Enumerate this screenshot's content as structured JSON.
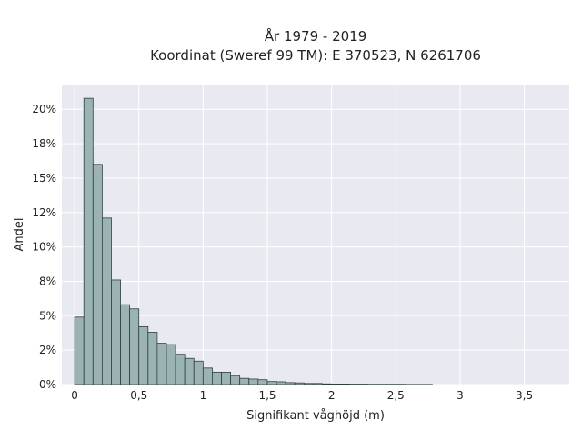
{
  "chart_data": {
    "type": "bar",
    "title_line1": "År 1979 - 2019",
    "title_line2": "Koordinat (Sweref 99 TM): E 370523, N 6261706",
    "xlabel": "Signifikant våghöjd (m)",
    "ylabel": "Andel",
    "xlim": [
      -0.1,
      3.85
    ],
    "ylim": [
      0,
      21.8
    ],
    "grid": true,
    "colors": {
      "plot_bg": "#e9e9f2",
      "grid": "#ffffff",
      "bar_fill": "#9bb3b3",
      "bar_edge": "#2f3f3f"
    },
    "x_ticks": [
      {
        "value": 0,
        "label": "0"
      },
      {
        "value": 0.5,
        "label": "0,5"
      },
      {
        "value": 1,
        "label": "1"
      },
      {
        "value": 1.5,
        "label": "1,5"
      },
      {
        "value": 2,
        "label": "2"
      },
      {
        "value": 2.5,
        "label": "2,5"
      },
      {
        "value": 3,
        "label": "3"
      },
      {
        "value": 3.5,
        "label": "3,5"
      }
    ],
    "y_ticks": [
      {
        "value": 0,
        "label": "0%"
      },
      {
        "value": 2.5,
        "label": "2%"
      },
      {
        "value": 5,
        "label": "5%"
      },
      {
        "value": 7.5,
        "label": "8%"
      },
      {
        "value": 10,
        "label": "10%"
      },
      {
        "value": 12.5,
        "label": "12%"
      },
      {
        "value": 15,
        "label": "15%"
      },
      {
        "value": 17.5,
        "label": "18%"
      },
      {
        "value": 20,
        "label": "20%"
      }
    ],
    "bin_start": 0.0,
    "bin_width": 0.0714,
    "values": [
      4.9,
      20.8,
      16.0,
      12.1,
      7.6,
      5.8,
      5.5,
      4.2,
      3.8,
      3.0,
      2.9,
      2.2,
      1.9,
      1.7,
      1.2,
      0.9,
      0.9,
      0.65,
      0.45,
      0.4,
      0.35,
      0.22,
      0.2,
      0.14,
      0.12,
      0.08,
      0.08,
      0.05,
      0.04,
      0.04,
      0.03,
      0.03,
      0.02,
      0.02,
      0.02,
      0.02,
      0.01,
      0.01,
      0.01
    ]
  }
}
